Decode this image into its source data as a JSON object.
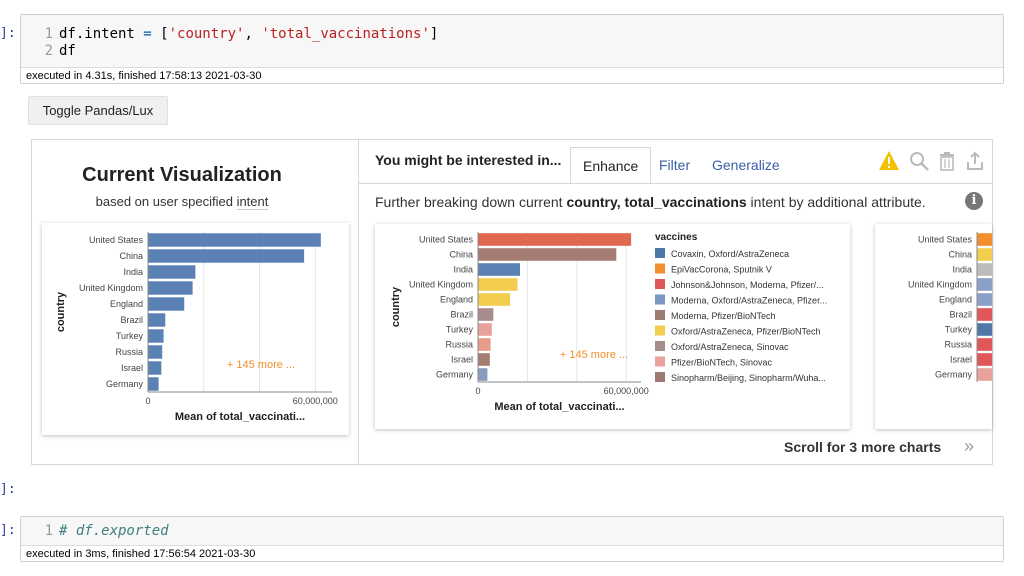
{
  "cell1": {
    "prompt": "]:",
    "lines": [
      {
        "num": "1",
        "parts": [
          {
            "t": "df.intent ",
            "c": ""
          },
          {
            "t": "=",
            "c": "tok-op"
          },
          {
            "t": " [",
            "c": ""
          },
          {
            "t": "'country'",
            "c": "tok-str"
          },
          {
            "t": ", ",
            "c": ""
          },
          {
            "t": "'total_vaccinations'",
            "c": "tok-str"
          },
          {
            "t": "]",
            "c": ""
          }
        ]
      },
      {
        "num": "2",
        "parts": [
          {
            "t": "df",
            "c": ""
          }
        ]
      }
    ],
    "exec": "executed in 4.31s, finished 17:58:13 2021-03-30"
  },
  "toggle_label": "Toggle Pandas/Lux",
  "current_vis": {
    "title": "Current Visualization",
    "subtitle_prefix": "based on user specified ",
    "subtitle_intent": "intent"
  },
  "right": {
    "header": "You might be interested in...",
    "tabs": [
      "Enhance",
      "Filter",
      "Generalize"
    ],
    "desc_prefix": "Further breaking down current ",
    "desc_bold": "country, total_vaccinations",
    "desc_suffix": " intent by additional attribute.",
    "info_glyph": "i",
    "scroll_text": "Scroll for 3 more charts",
    "scroll_glyph": "»",
    "icons": [
      "warning-icon",
      "search-icon",
      "trash-icon",
      "export-icon"
    ],
    "colors": {
      "warning": "#f2c200",
      "icon_gray": "#bbbbbb",
      "tab_link": "#3b5fa9"
    }
  },
  "chart_data": [
    {
      "type": "bar",
      "orientation": "horizontal",
      "categories": [
        "United States",
        "China",
        "India",
        "United Kingdom",
        "England",
        "Brazil",
        "Turkey",
        "Russia",
        "Israel",
        "Germany"
      ],
      "values": [
        62000000,
        56000000,
        17000000,
        16000000,
        13000000,
        6200000,
        5600000,
        5100000,
        4800000,
        3800000
      ],
      "xlabel": "Mean of total_vaccinati...",
      "ylabel": "country",
      "xticks": [
        "0",
        "60,000,000"
      ],
      "xlim": [
        0,
        66000000
      ],
      "annotation": "+ 145 more ...",
      "color": "#5b82b5"
    },
    {
      "type": "bar",
      "orientation": "horizontal",
      "categories": [
        "United States",
        "China",
        "India",
        "United Kingdom",
        "England",
        "Brazil",
        "Turkey",
        "Russia",
        "Israel",
        "Germany"
      ],
      "values": [
        62000000,
        56000000,
        17000000,
        16000000,
        13000000,
        6200000,
        5600000,
        5100000,
        4800000,
        3800000
      ],
      "series_colors": [
        "#e0684f",
        "#a57d73",
        "#5b82b5",
        "#f2cd4e",
        "#f2cd4e",
        "#a88c8c",
        "#e8a29b",
        "#e89c8a",
        "#a57d73",
        "#8a9cc0"
      ],
      "xlabel": "Mean of total_vaccinati...",
      "ylabel": "country",
      "xticks": [
        "0",
        "60,000,000"
      ],
      "xlim": [
        0,
        66000000
      ],
      "annotation": "+ 145 more ...",
      "legend_title": "vaccines",
      "legend": [
        {
          "label": "Covaxin, Oxford/AstraZeneca",
          "color": "#4e79a7"
        },
        {
          "label": "EpiVacCorona, Sputnik V",
          "color": "#f28e2b"
        },
        {
          "label": "Johnson&Johnson, Moderna, Pfizer/...",
          "color": "#e15759"
        },
        {
          "label": "Moderna, Oxford/AstraZeneca, Pfizer...",
          "color": "#7b95c5"
        },
        {
          "label": "Moderna, Pfizer/BioNTech",
          "color": "#9c7a72"
        },
        {
          "label": "Oxford/AstraZeneca, Pfizer/BioNTech",
          "color": "#f2cd4e"
        },
        {
          "label": "Oxford/AstraZeneca, Sinovac",
          "color": "#a88c8c"
        },
        {
          "label": "Pfizer/BioNTech, Sinovac",
          "color": "#e8a29b"
        },
        {
          "label": "Sinopharm/Beijing, Sinopharm/Wuha...",
          "color": "#9c7a72"
        }
      ]
    },
    {
      "type": "bar",
      "orientation": "horizontal",
      "categories": [
        "United States",
        "China",
        "India",
        "United Kingdom",
        "England",
        "Brazil",
        "Turkey",
        "Russia",
        "Israel",
        "Germany"
      ],
      "series_colors": [
        "#f28e2b",
        "#f2cd4e",
        "#bbbbbb",
        "#8aa0c8",
        "#8aa0c8",
        "#e15759",
        "#4e79a7",
        "#e15759",
        "#e15759",
        "#e8a29b"
      ],
      "partial": true
    }
  ],
  "cell2": {
    "prompt": "]:",
    "lines": [
      {
        "num": "1",
        "parts": [
          {
            "t": "# df.exported",
            "c": "tok-cm"
          }
        ]
      }
    ],
    "exec": "executed in 3ms, finished 17:56:54 2021-03-30"
  },
  "lower_prompt": "]:"
}
